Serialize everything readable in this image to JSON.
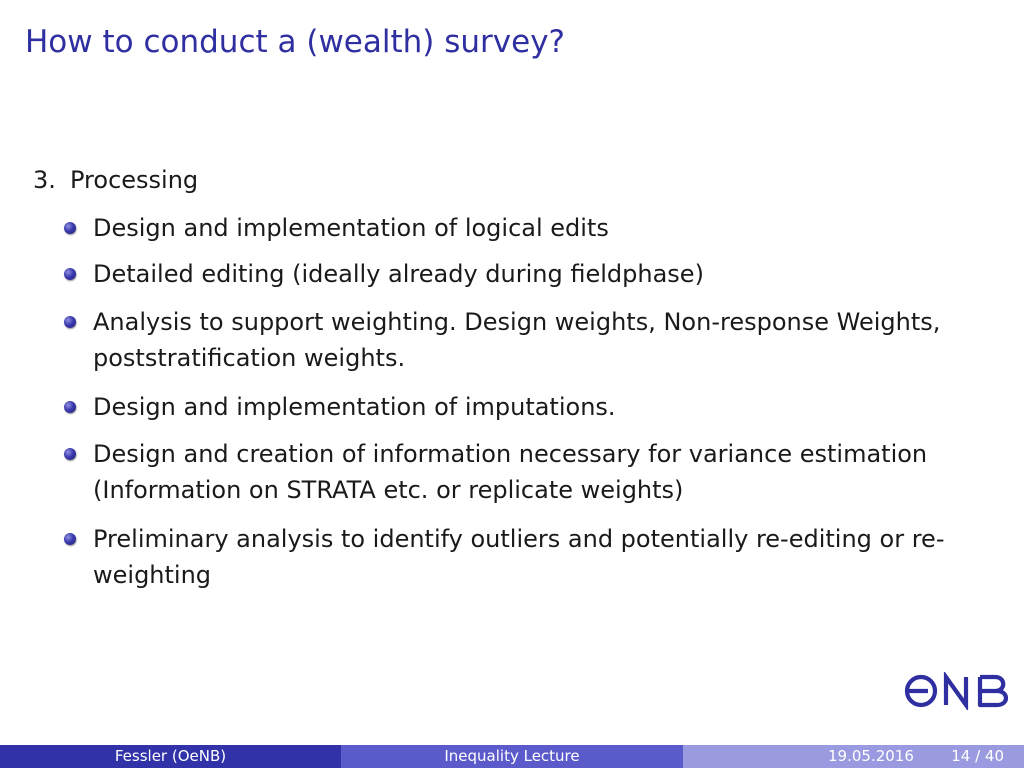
{
  "title": "How to conduct a (wealth) survey?",
  "section": {
    "number": "3.",
    "label": "Processing"
  },
  "bullets": [
    "Design and implementation of logical edits",
    "Detailed editing (ideally already during fieldphase)",
    "Analysis to support weighting.  Design weights, Non-response Weights, poststratification weights.",
    "Design and implementation of imputations.",
    "Design and creation of information necessary for variance estimation (Information on STRATA etc.  or replicate weights)",
    "Preliminary analysis to identify outliers and potentially re-editing or re-weighting"
  ],
  "logo": {
    "text": "ONB",
    "color": "#2f2fa1"
  },
  "footer": {
    "author": "Fessler  (OeNB)",
    "lecture": "Inequality Lecture",
    "date": "19.05.2016",
    "page": "14 / 40"
  },
  "colors": {
    "title": "#2f2fa1",
    "footer_left": "#3232a8",
    "footer_mid": "#5a5acb",
    "footer_right": "#9a9ae0"
  }
}
